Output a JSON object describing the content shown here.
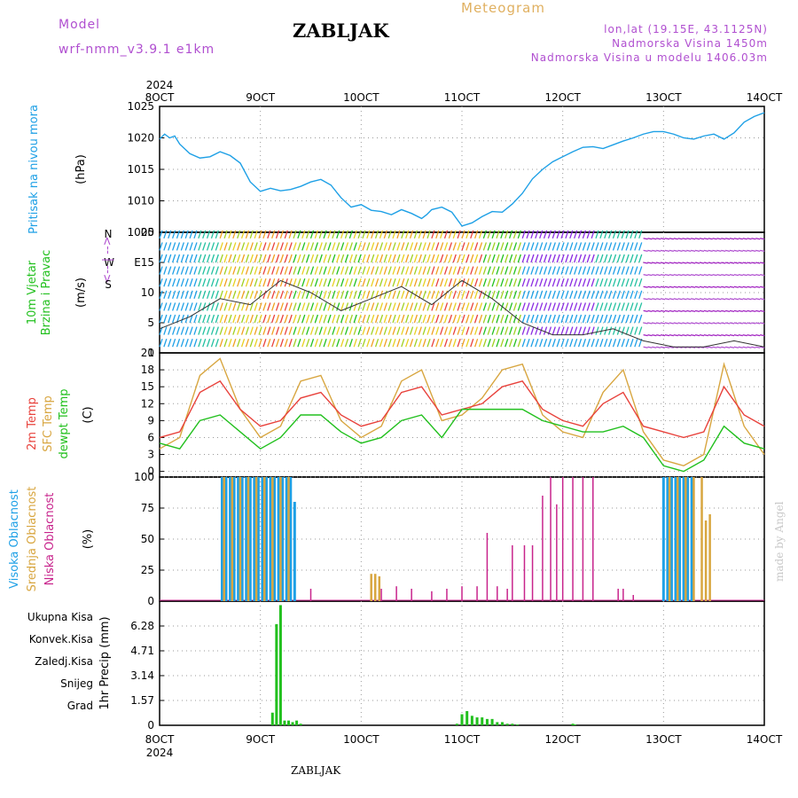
{
  "header": {
    "model_label": "Model",
    "model_value": "wrf-nmm_v3.9.1 e1km",
    "station": "ZABLJAK",
    "title": "Meteogram",
    "coords": "lon,lat (19.15E, 43.1125N)",
    "elevation": "Nadmorska Visina 1450m",
    "model_elevation": "Nadmorska Visina u modelu 1406.03m"
  },
  "footer": {
    "station": "ZABLJAK",
    "watermark": "made by Angel"
  },
  "colors": {
    "pressure": "#1ea0e6",
    "temp2m": "#e8423c",
    "sfc": "#d8a640",
    "dewpt": "#22c01e",
    "cloud_high": "#1ea0e6",
    "cloud_mid": "#d8a640",
    "cloud_low": "#c8248c",
    "precip_total": "#22c01e",
    "violet": "#b04fd0"
  },
  "chart_data": [
    {
      "type": "line",
      "id": "pressure",
      "ylabel": "Pritisak na nivou mora",
      "unit": "(hPa)",
      "x_ticks": [
        "8OCT",
        "9OCT",
        "10OCT",
        "11OCT",
        "12OCT",
        "13OCT",
        "14OCT"
      ],
      "year": "2024",
      "ylim": [
        1005,
        1025
      ],
      "y_ticks": [
        "1025",
        "1020",
        "1015",
        "1010",
        "1005"
      ],
      "grid": true,
      "series": [
        {
          "x": [
            0,
            0.05,
            0.1,
            0.15,
            0.2,
            0.3,
            0.4,
            0.5,
            0.6,
            0.7,
            0.8,
            0.9,
            1.0,
            1.1,
            1.2,
            1.3,
            1.4,
            1.5,
            1.6,
            1.7,
            1.8,
            1.9,
            2.0,
            2.1,
            2.2,
            2.3,
            2.4,
            2.5,
            2.6,
            2.65,
            2.7,
            2.8,
            2.9,
            3.0,
            3.1,
            3.2,
            3.3,
            3.4,
            3.5,
            3.6,
            3.7,
            3.8,
            3.9,
            4.0,
            4.1,
            4.2,
            4.3,
            4.4,
            4.5,
            4.6,
            4.7,
            4.8,
            4.9,
            5.0,
            5.1,
            5.2,
            5.3,
            5.4,
            5.5,
            5.6,
            5.7,
            5.8,
            5.9,
            6.0
          ],
          "values": [
            1019.8,
            1020.6,
            1020.0,
            1020.3,
            1019.0,
            1017.5,
            1016.8,
            1017.0,
            1017.8,
            1017.2,
            1016.0,
            1013.0,
            1011.5,
            1012.0,
            1011.6,
            1011.8,
            1012.3,
            1013.0,
            1013.4,
            1012.5,
            1010.5,
            1009.0,
            1009.4,
            1008.5,
            1008.3,
            1007.8,
            1008.6,
            1008.0,
            1007.2,
            1007.8,
            1008.6,
            1009.0,
            1008.2,
            1006.0,
            1006.5,
            1007.5,
            1008.3,
            1008.2,
            1009.5,
            1011.2,
            1013.5,
            1015.0,
            1016.2,
            1017.0,
            1017.8,
            1018.5,
            1018.6,
            1018.3,
            1018.9,
            1019.5,
            1020.0,
            1020.6,
            1021.0,
            1021.0,
            1020.6,
            1020.0,
            1019.8,
            1020.3,
            1020.6,
            1019.8,
            1020.8,
            1022.5,
            1023.4,
            1024.0
          ]
        }
      ]
    },
    {
      "type": "line",
      "id": "wind",
      "ylabel": "10m Vjetar Brzina i Pravac",
      "ylabel_line1": "10m Vjetar",
      "ylabel_line2": "Brzina i Pravac",
      "unit": "(m/s)",
      "compass": {
        "n": "N",
        "s": "S",
        "e": "E",
        "w": "W",
        "glyph": "<-- | -->"
      },
      "ylim": [
        0,
        20
      ],
      "y_ticks": [
        "20",
        "15",
        "10",
        "5",
        "0"
      ],
      "grid": true,
      "series": [
        {
          "name": "wind speed",
          "x": [
            0,
            0.3,
            0.6,
            0.9,
            1.2,
            1.5,
            1.8,
            2.1,
            2.4,
            2.7,
            3.0,
            3.3,
            3.6,
            3.9,
            4.2,
            4.5,
            4.8,
            5.1,
            5.4,
            5.7,
            6.0
          ],
          "values": [
            4,
            6,
            9,
            8,
            12,
            10,
            7,
            9,
            11,
            8,
            12,
            9,
            5,
            3,
            3,
            4,
            2,
            1,
            1,
            2,
            1
          ]
        }
      ]
    },
    {
      "type": "line",
      "id": "temperature",
      "ylabel_line1": "2m Temp",
      "ylabel_line2": "SFC Temp",
      "ylabel_line3": "dewpt Temp",
      "unit": "(C)",
      "ylim": [
        -1,
        21
      ],
      "y_ticks": [
        "21",
        "18",
        "15",
        "12",
        "9",
        "6",
        "3",
        "0"
      ],
      "grid": true,
      "series": [
        {
          "name": "2m Temp",
          "x": [
            0,
            0.2,
            0.4,
            0.6,
            0.8,
            1.0,
            1.2,
            1.4,
            1.6,
            1.8,
            2.0,
            2.2,
            2.4,
            2.6,
            2.8,
            3.0,
            3.2,
            3.4,
            3.6,
            3.8,
            4.0,
            4.2,
            4.4,
            4.6,
            4.8,
            5.0,
            5.2,
            5.4,
            5.6,
            5.8,
            6.0
          ],
          "values": [
            6,
            7,
            14,
            16,
            11,
            8,
            9,
            13,
            14,
            10,
            8,
            9,
            14,
            15,
            10,
            11,
            12,
            15,
            16,
            11,
            9,
            8,
            12,
            14,
            8,
            7,
            6,
            7,
            15,
            10,
            8
          ]
        },
        {
          "name": "SFC Temp",
          "x": [
            0,
            0.2,
            0.4,
            0.6,
            0.8,
            1.0,
            1.2,
            1.4,
            1.6,
            1.8,
            2.0,
            2.2,
            2.4,
            2.6,
            2.8,
            3.0,
            3.2,
            3.4,
            3.6,
            3.8,
            4.0,
            4.2,
            4.4,
            4.6,
            4.8,
            5.0,
            5.2,
            5.4,
            5.6,
            5.8,
            6.0
          ],
          "values": [
            4,
            6,
            17,
            20,
            11,
            6,
            8,
            16,
            17,
            9,
            6,
            8,
            16,
            18,
            9,
            10,
            13,
            18,
            19,
            10,
            7,
            6,
            14,
            18,
            7,
            2,
            1,
            3,
            19,
            8,
            3
          ]
        },
        {
          "name": "dewpt Temp",
          "x": [
            0,
            0.2,
            0.4,
            0.6,
            0.8,
            1.0,
            1.2,
            1.4,
            1.6,
            1.8,
            2.0,
            2.2,
            2.4,
            2.6,
            2.8,
            3.0,
            3.2,
            3.4,
            3.6,
            3.8,
            4.0,
            4.2,
            4.4,
            4.6,
            4.8,
            5.0,
            5.2,
            5.4,
            5.6,
            5.8,
            6.0
          ],
          "values": [
            5,
            4,
            9,
            10,
            7,
            4,
            6,
            10,
            10,
            7,
            5,
            6,
            9,
            10,
            6,
            11,
            11,
            11,
            11,
            9,
            8,
            7,
            7,
            8,
            6,
            1,
            0,
            2,
            8,
            5,
            4
          ]
        }
      ]
    },
    {
      "type": "bar",
      "id": "clouds",
      "ylabel_line1": "Visoka Oblacnost",
      "ylabel_line2": "Srednja Oblacnost",
      "ylabel_line3": "Niska Oblacnost",
      "unit": "(%)",
      "ylim": [
        0,
        100
      ],
      "y_ticks": [
        "100",
        "75",
        "50",
        "25",
        "0"
      ],
      "grid": true,
      "series": [
        {
          "name": "Visoka Oblacnost",
          "x": [
            0.62,
            0.66,
            0.7,
            0.74,
            0.78,
            0.82,
            0.86,
            0.9,
            0.94,
            0.98,
            1.02,
            1.06,
            1.1,
            1.14,
            1.18,
            1.22,
            1.26,
            1.3,
            1.34,
            5.0,
            5.04,
            5.08,
            5.12,
            5.16,
            5.2,
            5.24,
            5.28
          ],
          "values": [
            100,
            100,
            100,
            100,
            100,
            100,
            100,
            100,
            100,
            100,
            100,
            100,
            100,
            100,
            100,
            100,
            100,
            100,
            80,
            100,
            100,
            100,
            100,
            100,
            100,
            100,
            100
          ]
        },
        {
          "name": "Srednja Oblacnost",
          "x": [
            0.64,
            0.72,
            0.8,
            0.88,
            0.96,
            1.04,
            1.12,
            1.2,
            1.28,
            2.1,
            2.14,
            2.18,
            5.06,
            5.14,
            5.22,
            5.3,
            5.38,
            5.42,
            5.46
          ],
          "values": [
            100,
            100,
            100,
            100,
            100,
            100,
            100,
            100,
            100,
            22,
            22,
            20,
            100,
            100,
            100,
            100,
            100,
            65,
            70
          ]
        },
        {
          "name": "Niska Oblacnost",
          "x": [
            1.5,
            2.2,
            2.35,
            2.5,
            2.7,
            2.85,
            3.0,
            3.15,
            3.25,
            3.35,
            3.45,
            3.5,
            3.62,
            3.7,
            3.8,
            3.88,
            3.94,
            4.0,
            4.1,
            4.2,
            4.3,
            4.55,
            4.6,
            4.7
          ],
          "values": [
            10,
            10,
            12,
            10,
            8,
            10,
            12,
            12,
            55,
            12,
            10,
            45,
            45,
            45,
            85,
            100,
            78,
            100,
            100,
            100,
            100,
            10,
            10,
            5
          ]
        }
      ]
    },
    {
      "type": "bar",
      "id": "precip",
      "ylabel": "1hr Precip (mm)",
      "ylim": [
        0,
        7.85
      ],
      "y_ticks": [
        "6.28",
        "4.71",
        "3.14",
        "1.57",
        "0"
      ],
      "legend_items": [
        "Ukupna Kisa",
        "Konvek.Kisa",
        "Zaledj.Kisa",
        "Snijeg",
        "Grad"
      ],
      "x_ticks": [
        "8OCT",
        "9OCT",
        "10OCT",
        "11OCT",
        "12OCT",
        "13OCT",
        "14OCT"
      ],
      "year": "2024",
      "grid": true,
      "series": [
        {
          "name": "Ukupna Kisa",
          "x": [
            1.12,
            1.16,
            1.2,
            1.24,
            1.28,
            1.32,
            1.36,
            1.4,
            2.95,
            3.0,
            3.05,
            3.1,
            3.15,
            3.2,
            3.25,
            3.3,
            3.35,
            3.4,
            3.45,
            3.5,
            3.55,
            4.1,
            4.12
          ],
          "values": [
            0.8,
            6.4,
            7.6,
            0.3,
            0.3,
            0.2,
            0.3,
            0.1,
            0.1,
            0.7,
            0.9,
            0.6,
            0.5,
            0.5,
            0.4,
            0.4,
            0.2,
            0.2,
            0.1,
            0.1,
            0.05,
            0.1,
            0.05
          ]
        }
      ]
    }
  ]
}
